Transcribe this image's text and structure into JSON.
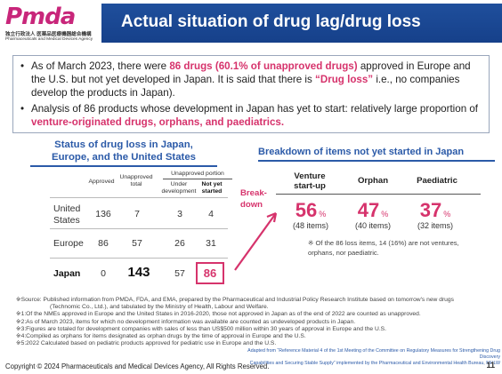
{
  "logo": {
    "word": "Pmda",
    "sub_japanese": "独立行政法人 医薬品医療機器総合機構",
    "sub_english": "Pharmaceuticals and Medical Devices Agency"
  },
  "title": "Actual situation of drug lag/drug loss",
  "bullets": {
    "b1_pre": "As of March 2023, there were ",
    "b1_red": "86 drugs (60.1% of unapproved drugs)",
    "b1_mid": " approved in Europe and the U.S. but not yet developed in Japan. It is said that there is ",
    "b1_red2": "“Drug loss”",
    "b1_post": " i.e., no companies develop the products in Japan).",
    "b2_pre": "Analysis of 86 products whose development in Japan has yet to start: relatively large proportion of ",
    "b2_red": "venture-originated drugs, orphans, and paediatrics."
  },
  "left_table": {
    "title_line1": "Status of drug loss in Japan,",
    "title_line2": "Europe, and the United States",
    "col_approved": "Approved",
    "col_unapproved_total": "Unapproved total",
    "group_unapproved_portion": "Unapproved portion",
    "col_under_development": "Under development",
    "col_not_yet_started": "Not yet started",
    "rows": [
      {
        "label": "United States",
        "approved": "136",
        "unapproved_total": "7",
        "under_development": "3",
        "not_yet_started": "4"
      },
      {
        "label": "Europe",
        "approved": "86",
        "unapproved_total": "57",
        "under_development": "26",
        "not_yet_started": "31"
      },
      {
        "label": "Japan",
        "approved": "0",
        "unapproved_total": "143",
        "under_development": "57",
        "not_yet_started": "86"
      }
    ]
  },
  "breakdown_label": "Break-\ndown",
  "right_panel": {
    "title": "Breakdown of items not yet started in Japan",
    "col_venture": "Venture start-up",
    "col_orphan": "Orphan",
    "col_paediatric": "Paediatric",
    "venture_pct": "56",
    "orphan_pct": "47",
    "paediatric_pct": "37",
    "pct_sign": "%",
    "venture_items": "(48 items)",
    "orphan_items": "(40 items)",
    "paediatric_items": "(32 items)",
    "note": "※ Of the 86 loss items, 14 (16%) are not ventures, orphans, nor paediatric."
  },
  "footnotes": {
    "source_line1": "※Source: Published information from PMDA, FDA, and EMA, prepared by the Pharmaceutical and Industrial Policy Research Institute based on tomorrow's new drugs",
    "source_line2": "(Technomic Co., Ltd.), and tabulated by the Ministry of Health, Labour and Welfare.",
    "n1": "※1:Of the NMEs approved in Europe and the United States in 2016-2020, those not approved in Japan as of the end of 2022 are counted as unapproved.",
    "n2": "※2:As of March 2023, items for which no development information was available are counted as undeveloped products in Japan.",
    "n3": "※3:Figures are totaled for development companies with sales of less than US$500 million within 30 years of approval in Europe and the U.S.",
    "n4": "※4:Compiled as orphans for items designated as orphan drugs by the time of approval in Europe and the U.S.",
    "n5": "※5:2022 Calculated based on pediatric products approved for pediatric use in Europe and the U.S."
  },
  "adapted": {
    "line1": "Adapted from “Reference Material 4 of the 1st Meeting of the Committee on Regulatory Measures for Strengthening Drug Discovery",
    "line2": "Capabilities and Securing Stable Supply” implemented by the Pharmaceutical and Environmental Health Bureau, MHLW"
  },
  "copyright": "Copyright © 2024 Pharmaceuticals and Medical Devices Agency, All Rights Reserved.",
  "page_number": "11",
  "colors": {
    "accent_blue": "#1f4f9c",
    "highlight_pink": "#d6336c"
  }
}
